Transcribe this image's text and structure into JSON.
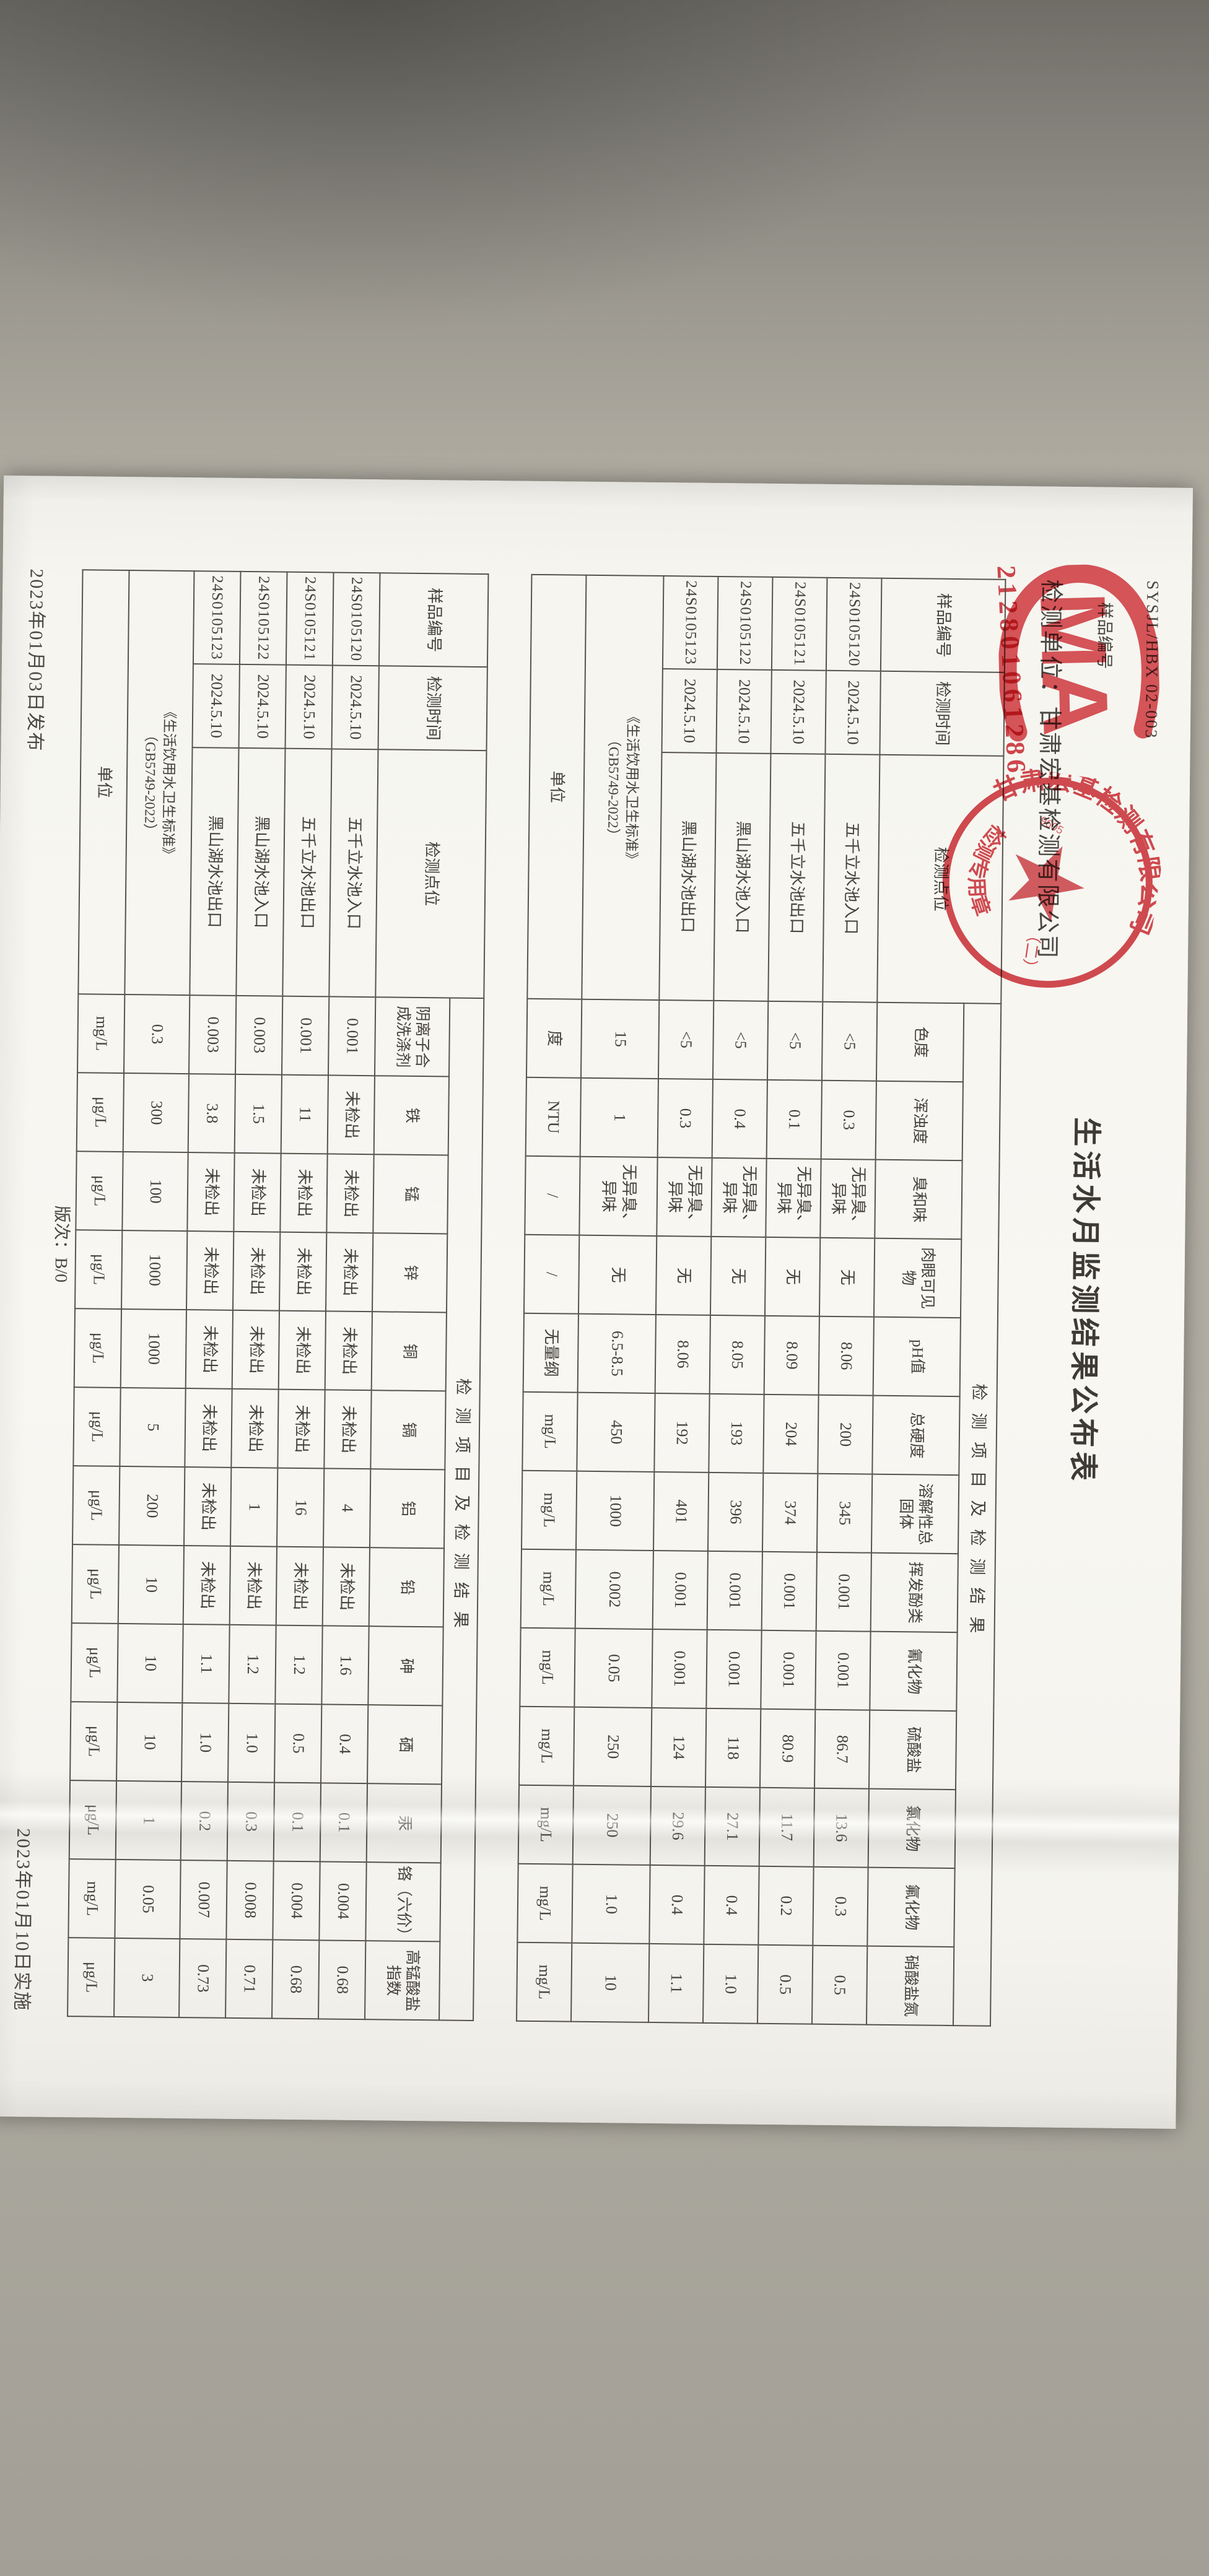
{
  "paper": {
    "doc_code": "SYSJL/HBX 02-003",
    "sample_label": "样品编号",
    "sample_stamp": "212801061286",
    "title": "生活水月监测结果公布表",
    "org_line": "检测单位：甘肃宏基检测有限公司",
    "footer": {
      "edition": "版次：B/0",
      "issued": "2023年01月03日发布",
      "effective": "2023年01月10日实施"
    },
    "stamps": {
      "cma_letters": "MA",
      "seal_ring_text": "甘肃宏基检测有限公司",
      "seal_bottom_text": "检测专用章",
      "seal_variant": "（二）",
      "seal_code": "9605"
    }
  },
  "tables": [
    {
      "header_left": [
        "样品编号",
        "检测时间",
        "检测点位"
      ],
      "section_header": "检测项目及检测结果",
      "params": [
        "色度",
        "浑浊度",
        "臭和味",
        "肉眼可见物",
        "pH值",
        "总硬度",
        "溶解性总固体",
        "挥发酚类",
        "氰化物",
        "硫酸盐",
        "氯化物",
        "氟化物",
        "硝酸盐氮"
      ],
      "rows": [
        {
          "id": "24S0105120",
          "date": "2024.5.10",
          "site": "五千立水池入口",
          "values": [
            "<5",
            "0.3",
            "无异臭、异味",
            "无",
            "8.06",
            "200",
            "345",
            "0.001",
            "0.001",
            "86.7",
            "13.6",
            "0.3",
            "0.5"
          ]
        },
        {
          "id": "24S0105121",
          "date": "2024.5.10",
          "site": "五千立水池出口",
          "values": [
            "<5",
            "0.1",
            "无异臭、异味",
            "无",
            "8.09",
            "204",
            "374",
            "0.001",
            "0.001",
            "80.9",
            "11.7",
            "0.2",
            "0.5"
          ]
        },
        {
          "id": "24S0105122",
          "date": "2024.5.10",
          "site": "黑山湖水池入口",
          "values": [
            "<5",
            "0.4",
            "无异臭、异味",
            "无",
            "8.05",
            "193",
            "396",
            "0.001",
            "0.001",
            "118",
            "27.1",
            "0.4",
            "1.0"
          ]
        },
        {
          "id": "24S0105123",
          "date": "2024.5.10",
          "site": "黑山湖水池出口",
          "values": [
            "<5",
            "0.3",
            "无异臭、异味",
            "无",
            "8.06",
            "192",
            "401",
            "0.001",
            "0.001",
            "124",
            "29.6",
            "0.4",
            "1.1"
          ]
        }
      ],
      "limits_title": [
        "《生活饮用水卫生标准》",
        "（GB5749-2022）"
      ],
      "limits": [
        "15",
        "1",
        "无异臭、异味",
        "无",
        "6.5-8.5",
        "450",
        "1000",
        "0.002",
        "0.05",
        "250",
        "250",
        "1.0",
        "10"
      ],
      "units_label": "单位",
      "units": [
        "度",
        "NTU",
        "/",
        "/",
        "无量纲",
        "mg/L",
        "mg/L",
        "mg/L",
        "mg/L",
        "mg/L",
        "mg/L",
        "mg/L",
        "mg/L"
      ]
    },
    {
      "header_left": [
        "样品编号",
        "检测时间",
        "检测点位"
      ],
      "section_header": "检测项目及检测结果",
      "params": [
        "阴离子合成洗涤剂",
        "铁",
        "锰",
        "锌",
        "铜",
        "镉",
        "铝",
        "铅",
        "砷",
        "硒",
        "汞",
        "铬（六价）",
        "高锰酸盐指数"
      ],
      "rows": [
        {
          "id": "24S0105120",
          "date": "2024.5.10",
          "site": "五千立水池入口",
          "values": [
            "0.001",
            "未检出",
            "未检出",
            "未检出",
            "未检出",
            "未检出",
            "4",
            "未检出",
            "1.6",
            "0.4",
            "0.1",
            "0.004",
            "0.68"
          ]
        },
        {
          "id": "24S0105121",
          "date": "2024.5.10",
          "site": "五千立水池出口",
          "values": [
            "0.001",
            "11",
            "未检出",
            "未检出",
            "未检出",
            "未检出",
            "16",
            "未检出",
            "1.2",
            "0.5",
            "0.1",
            "0.004",
            "0.68"
          ]
        },
        {
          "id": "24S0105122",
          "date": "2024.5.10",
          "site": "黑山湖水池入口",
          "values": [
            "0.003",
            "1.5",
            "未检出",
            "未检出",
            "未检出",
            "未检出",
            "1",
            "未检出",
            "1.2",
            "1.0",
            "0.3",
            "0.008",
            "0.71"
          ]
        },
        {
          "id": "24S0105123",
          "date": "2024.5.10",
          "site": "黑山湖水池出口",
          "values": [
            "0.003",
            "3.8",
            "未检出",
            "未检出",
            "未检出",
            "未检出",
            "未检出",
            "未检出",
            "1.1",
            "1.0",
            "0.2",
            "0.007",
            "0.73"
          ]
        }
      ],
      "limits_title": [
        "《生活饮用水卫生标准》",
        "（GB5749-2022）"
      ],
      "limits": [
        "0.3",
        "300",
        "100",
        "1000",
        "1000",
        "5",
        "200",
        "10",
        "10",
        "10",
        "1",
        "0.05",
        "3"
      ],
      "units_label": "单位",
      "units": [
        "mg/L",
        "μg/L",
        "μg/L",
        "μg/L",
        "μg/L",
        "μg/L",
        "μg/L",
        "μg/L",
        "μg/L",
        "μg/L",
        "μg/L",
        "mg/L",
        "μg/L"
      ]
    }
  ]
}
